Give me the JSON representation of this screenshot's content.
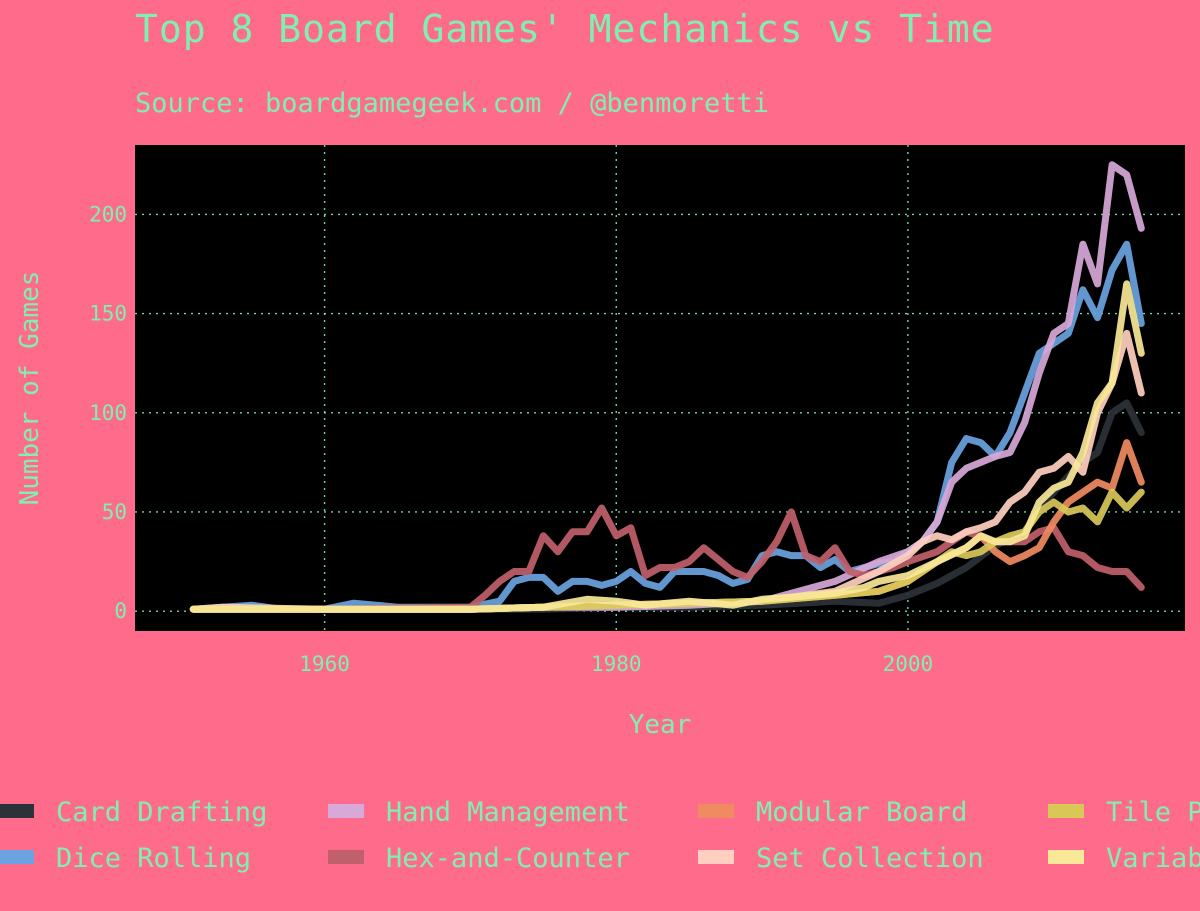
{
  "chart_data": {
    "type": "line",
    "title": "Top 8 Board Games' Mechanics vs Time",
    "subtitle": "Source: boardgamegeek.com / @benmoretti",
    "xlabel": "Year",
    "ylabel": "Number of Games",
    "xlim": [
      1947,
      2019
    ],
    "ylim": [
      -10,
      235
    ],
    "x_ticks": [
      1960,
      1980,
      2000
    ],
    "y_ticks": [
      0,
      50,
      100,
      150,
      200
    ],
    "grid": true,
    "legend_position": "bottom",
    "plot_background": "#000000",
    "page_background": "#ff6b8b",
    "text_color": "#7ff0b0",
    "series": [
      {
        "name": "Card Drafting",
        "color": "#2b3238",
        "x": [
          1951,
          1960,
          1970,
          1975,
          1980,
          1985,
          1990,
          1995,
          1998,
          2000,
          2002,
          2004,
          2006,
          2008,
          2009,
          2010,
          2011,
          2012,
          2013,
          2014,
          2015,
          2016
        ],
        "y": [
          1,
          1,
          1,
          1,
          2,
          2,
          3,
          5,
          4,
          8,
          14,
          22,
          33,
          40,
          52,
          60,
          68,
          75,
          80,
          100,
          105,
          90
        ]
      },
      {
        "name": "Dice Rolling",
        "color": "#6aa3e0",
        "x": [
          1951,
          1955,
          1957,
          1960,
          1962,
          1965,
          1967,
          1970,
          1972,
          1973,
          1974,
          1975,
          1976,
          1977,
          1978,
          1979,
          1980,
          1981,
          1982,
          1983,
          1984,
          1985,
          1986,
          1987,
          1988,
          1989,
          1990,
          1991,
          1992,
          1993,
          1994,
          1995,
          1996,
          1997,
          1998,
          1999,
          2000,
          2001,
          2002,
          2003,
          2004,
          2005,
          2006,
          2007,
          2008,
          2009,
          2010,
          2011,
          2012,
          2013,
          2014,
          2015,
          2016
        ],
        "y": [
          1,
          3,
          1,
          1,
          4,
          2,
          2,
          2,
          5,
          15,
          17,
          17,
          10,
          15,
          15,
          13,
          15,
          20,
          14,
          12,
          20,
          20,
          20,
          18,
          14,
          16,
          28,
          30,
          28,
          28,
          22,
          26,
          20,
          22,
          24,
          25,
          30,
          35,
          45,
          75,
          87,
          85,
          78,
          90,
          110,
          130,
          135,
          140,
          162,
          148,
          172,
          185,
          145
        ]
      },
      {
        "name": "Hand Management",
        "color": "#d8a8d8",
        "x": [
          1951,
          1960,
          1970,
          1975,
          1980,
          1985,
          1990,
          1995,
          1998,
          2000,
          2001,
          2002,
          2003,
          2004,
          2005,
          2006,
          2007,
          2008,
          2009,
          2010,
          2011,
          2012,
          2013,
          2014,
          2015,
          2016
        ],
        "y": [
          1,
          1,
          1,
          2,
          2,
          3,
          5,
          15,
          25,
          30,
          35,
          45,
          65,
          72,
          75,
          78,
          80,
          95,
          120,
          140,
          145,
          185,
          165,
          225,
          220,
          193
        ]
      },
      {
        "name": "Hex-and-Counter",
        "color": "#c0606a",
        "x": [
          1951,
          1960,
          1970,
          1971,
          1972,
          1973,
          1974,
          1975,
          1976,
          1977,
          1978,
          1979,
          1980,
          1981,
          1982,
          1983,
          1984,
          1985,
          1986,
          1987,
          1988,
          1989,
          1990,
          1991,
          1992,
          1993,
          1994,
          1995,
          1996,
          1997,
          1998,
          1999,
          2000,
          2002,
          2004,
          2006,
          2008,
          2009,
          2010,
          2011,
          2012,
          2013,
          2014,
          2015,
          2016
        ],
        "y": [
          1,
          1,
          2,
          8,
          15,
          20,
          20,
          38,
          30,
          40,
          40,
          52,
          38,
          42,
          18,
          22,
          22,
          25,
          32,
          26,
          20,
          17,
          25,
          35,
          50,
          28,
          25,
          32,
          20,
          18,
          20,
          22,
          25,
          30,
          40,
          35,
          35,
          40,
          42,
          30,
          28,
          22,
          20,
          20,
          12
        ]
      },
      {
        "name": "Modular Board",
        "color": "#f08a60",
        "x": [
          1951,
          1960,
          1970,
          1975,
          1980,
          1985,
          1990,
          1995,
          1998,
          2000,
          2002,
          2004,
          2005,
          2006,
          2007,
          2008,
          2009,
          2010,
          2011,
          2012,
          2013,
          2014,
          2015,
          2016
        ],
        "y": [
          1,
          1,
          1,
          2,
          3,
          4,
          5,
          8,
          10,
          15,
          25,
          32,
          38,
          30,
          25,
          28,
          32,
          45,
          55,
          60,
          65,
          62,
          85,
          65
        ]
      },
      {
        "name": "Set Collection",
        "color": "#ffd0c0",
        "x": [
          1951,
          1953,
          1960,
          1970,
          1975,
          1980,
          1985,
          1990,
          1995,
          1998,
          2000,
          2001,
          2002,
          2003,
          2004,
          2005,
          2006,
          2007,
          2008,
          2009,
          2010,
          2011,
          2012,
          2013,
          2014,
          2015,
          2016
        ],
        "y": [
          1,
          2,
          1,
          1,
          2,
          3,
          4,
          5,
          10,
          20,
          28,
          35,
          38,
          36,
          40,
          42,
          45,
          55,
          60,
          70,
          72,
          78,
          70,
          100,
          115,
          140,
          110
        ]
      },
      {
        "name": "Tile Placement",
        "color": "#d8c858",
        "x": [
          1951,
          1960,
          1970,
          1975,
          1980,
          1985,
          1990,
          1995,
          1998,
          2000,
          2001,
          2002,
          2003,
          2004,
          2005,
          2006,
          2007,
          2008,
          2009,
          2010,
          2011,
          2012,
          2013,
          2014,
          2015,
          2016
        ],
        "y": [
          1,
          1,
          1,
          2,
          3,
          4,
          5,
          8,
          10,
          15,
          20,
          25,
          30,
          28,
          30,
          35,
          38,
          40,
          50,
          55,
          50,
          52,
          45,
          60,
          52,
          60
        ]
      },
      {
        "name": "Variable Player Powers",
        "color": "#f8e898",
        "x": [
          1951,
          1960,
          1970,
          1975,
          1978,
          1980,
          1982,
          1985,
          1988,
          1990,
          1992,
          1995,
          1997,
          1998,
          2000,
          2002,
          2004,
          2005,
          2006,
          2007,
          2008,
          2009,
          2010,
          2011,
          2012,
          2013,
          2014,
          2015,
          2016
        ],
        "y": [
          1,
          1,
          1,
          2,
          6,
          5,
          3,
          5,
          3,
          6,
          7,
          9,
          12,
          15,
          18,
          25,
          32,
          38,
          35,
          35,
          38,
          55,
          62,
          65,
          80,
          105,
          115,
          165,
          130
        ]
      }
    ]
  }
}
